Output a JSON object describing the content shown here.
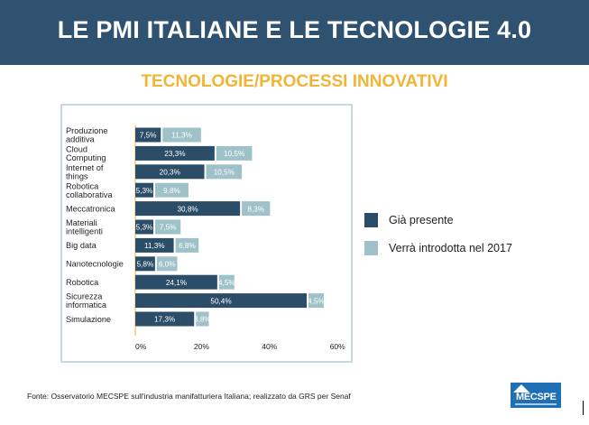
{
  "header": {
    "title": "LE PMI ITALIANE E LE TECNOLOGIE 4.0"
  },
  "subtitle": "TECNOLOGIE/PROCESSI INNOVATIVI",
  "colors": {
    "header_bg": "#2e5270",
    "subtitle": "#f1b434",
    "present": "#2c4d68",
    "future": "#9fc2c8",
    "frame": "#c5dadf"
  },
  "chart_data": {
    "type": "bar",
    "orientation": "horizontal",
    "categories": [
      [
        "Produzione",
        "additiva"
      ],
      [
        "Cloud",
        "Computing"
      ],
      [
        "Internet of",
        "things"
      ],
      [
        "Robotica",
        "collaborativa"
      ],
      [
        "Meccatronica"
      ],
      [
        "Materiali",
        "intelligenti"
      ],
      [
        "Big data"
      ],
      [
        "Nanotecnologie"
      ],
      [
        "Robotica"
      ],
      [
        "Sicurezza",
        "informatica"
      ],
      [
        "Simulazione"
      ]
    ],
    "series": [
      {
        "name": "Già presente",
        "color": "#2c4d68",
        "values": [
          7.5,
          23.3,
          20.3,
          5.3,
          30.8,
          5.3,
          11.3,
          5.8,
          24.1,
          50.4,
          17.3
        ],
        "labels": [
          "7,5%",
          "23,3%",
          "20,3%",
          "5,3%",
          "30,8%",
          "5,3%",
          "11,3%",
          "5,8%",
          "24,1%",
          "50,4%",
          "17,3%"
        ]
      },
      {
        "name": "Verrà introdotta nel 2017",
        "color": "#9fc2c8",
        "values": [
          11.3,
          10.5,
          10.5,
          9.8,
          8.3,
          7.5,
          6.8,
          6.0,
          4.5,
          4.5,
          3.8
        ],
        "labels": [
          "11,3%",
          "10,5%",
          "10,5%",
          "9,8%",
          "8,3%",
          "7,5%",
          "6,8%",
          "6,0%",
          "4,5%",
          "4,5%",
          "3,8%"
        ]
      }
    ],
    "stacked": true,
    "xlim": [
      0,
      60
    ],
    "xticks": [
      0,
      20,
      40,
      60
    ],
    "xtick_labels": [
      "0%",
      "20%",
      "40%",
      "60%"
    ],
    "legend_position": "right",
    "grid": false
  },
  "source": "Fonte: Osservatorio MECSPE sull'industria manifatturiera Italiana; realizzato da GRS per Senaf",
  "logo": {
    "text": "MECSPE"
  }
}
